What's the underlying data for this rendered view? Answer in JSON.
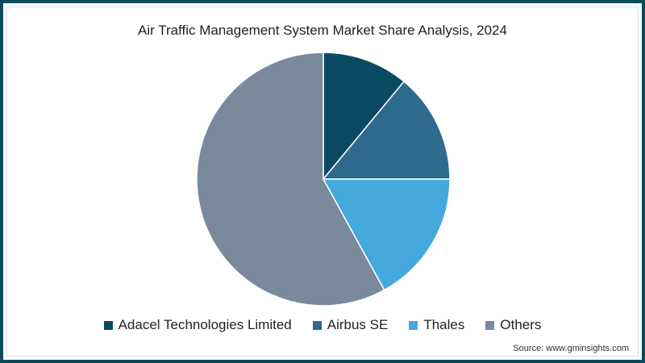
{
  "chart_data": {
    "type": "pie",
    "title": "Air Traffic Management System Market Share Analysis, 2024",
    "categories": [
      "Adacel Technologies Limited",
      "Airbus SE",
      "Thales",
      "Others"
    ],
    "values": [
      11,
      14,
      17,
      58
    ],
    "colors": [
      "#0b4a63",
      "#2e6a8c",
      "#45a9de",
      "#7a8a9c"
    ],
    "legend_position": "bottom",
    "start_angle": "12 o'clock, clockwise"
  },
  "source": "Source: www.gminsights.com"
}
